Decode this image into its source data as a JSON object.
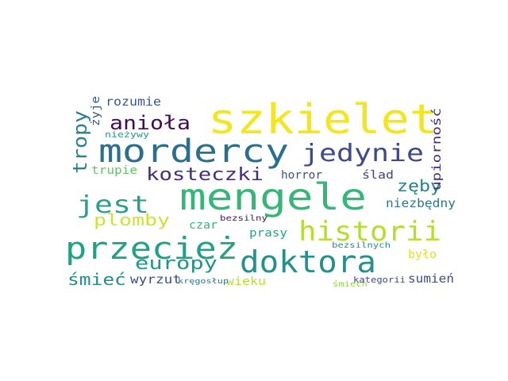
{
  "words": [
    {
      "text": "szkielet",
      "color": "#f3e61f"
    },
    {
      "text": "mengele",
      "color": "#35b779"
    },
    {
      "text": "mordercy",
      "color": "#2b6f8e"
    },
    {
      "text": "doktora",
      "color": "#25908c"
    },
    {
      "text": "przecież",
      "color": "#1fa287"
    },
    {
      "text": "historii",
      "color": "#b5de2b"
    },
    {
      "text": "jedynie",
      "color": "#3e4a89"
    },
    {
      "text": "jest",
      "color": "#2e9d8b"
    },
    {
      "text": "anioła",
      "color": "#440c55"
    },
    {
      "text": "kosteczki",
      "color": "#472d7b"
    },
    {
      "text": "europy",
      "color": "#20948a"
    },
    {
      "text": "plomby",
      "color": "#cee22f"
    },
    {
      "text": "tropy",
      "color": "#2f7f8d"
    },
    {
      "text": "zęby",
      "color": "#26818e"
    },
    {
      "text": "śmieć",
      "color": "#218e8c"
    },
    {
      "text": "wyrzut",
      "color": "#3c4f8a"
    },
    {
      "text": "upiorność",
      "color": "#472a79"
    },
    {
      "text": "niezbędny",
      "color": "#2a778e"
    },
    {
      "text": "rozumie",
      "color": "#39578c"
    },
    {
      "text": "horror",
      "color": "#3c4e8a"
    },
    {
      "text": "ślad",
      "color": "#414487"
    },
    {
      "text": "trupie",
      "color": "#5ec962"
    },
    {
      "text": "żyje",
      "color": "#365c8d"
    },
    {
      "text": "prasy",
      "color": "#26a784"
    },
    {
      "text": "czar",
      "color": "#35b779"
    },
    {
      "text": "wieku",
      "color": "#b8de29"
    },
    {
      "text": "było",
      "color": "#e1e41d"
    },
    {
      "text": "sumień",
      "color": "#3e4c8a"
    },
    {
      "text": "nieżywy",
      "color": "#1fa088"
    },
    {
      "text": "bezsilny",
      "color": "#471164"
    },
    {
      "text": "bezsilnych",
      "color": "#21918c"
    },
    {
      "text": "kręgosłup",
      "color": "#2c718e"
    },
    {
      "text": "śmiech",
      "color": "#8fd744"
    },
    {
      "text": "kategorii",
      "color": "#404688"
    }
  ]
}
